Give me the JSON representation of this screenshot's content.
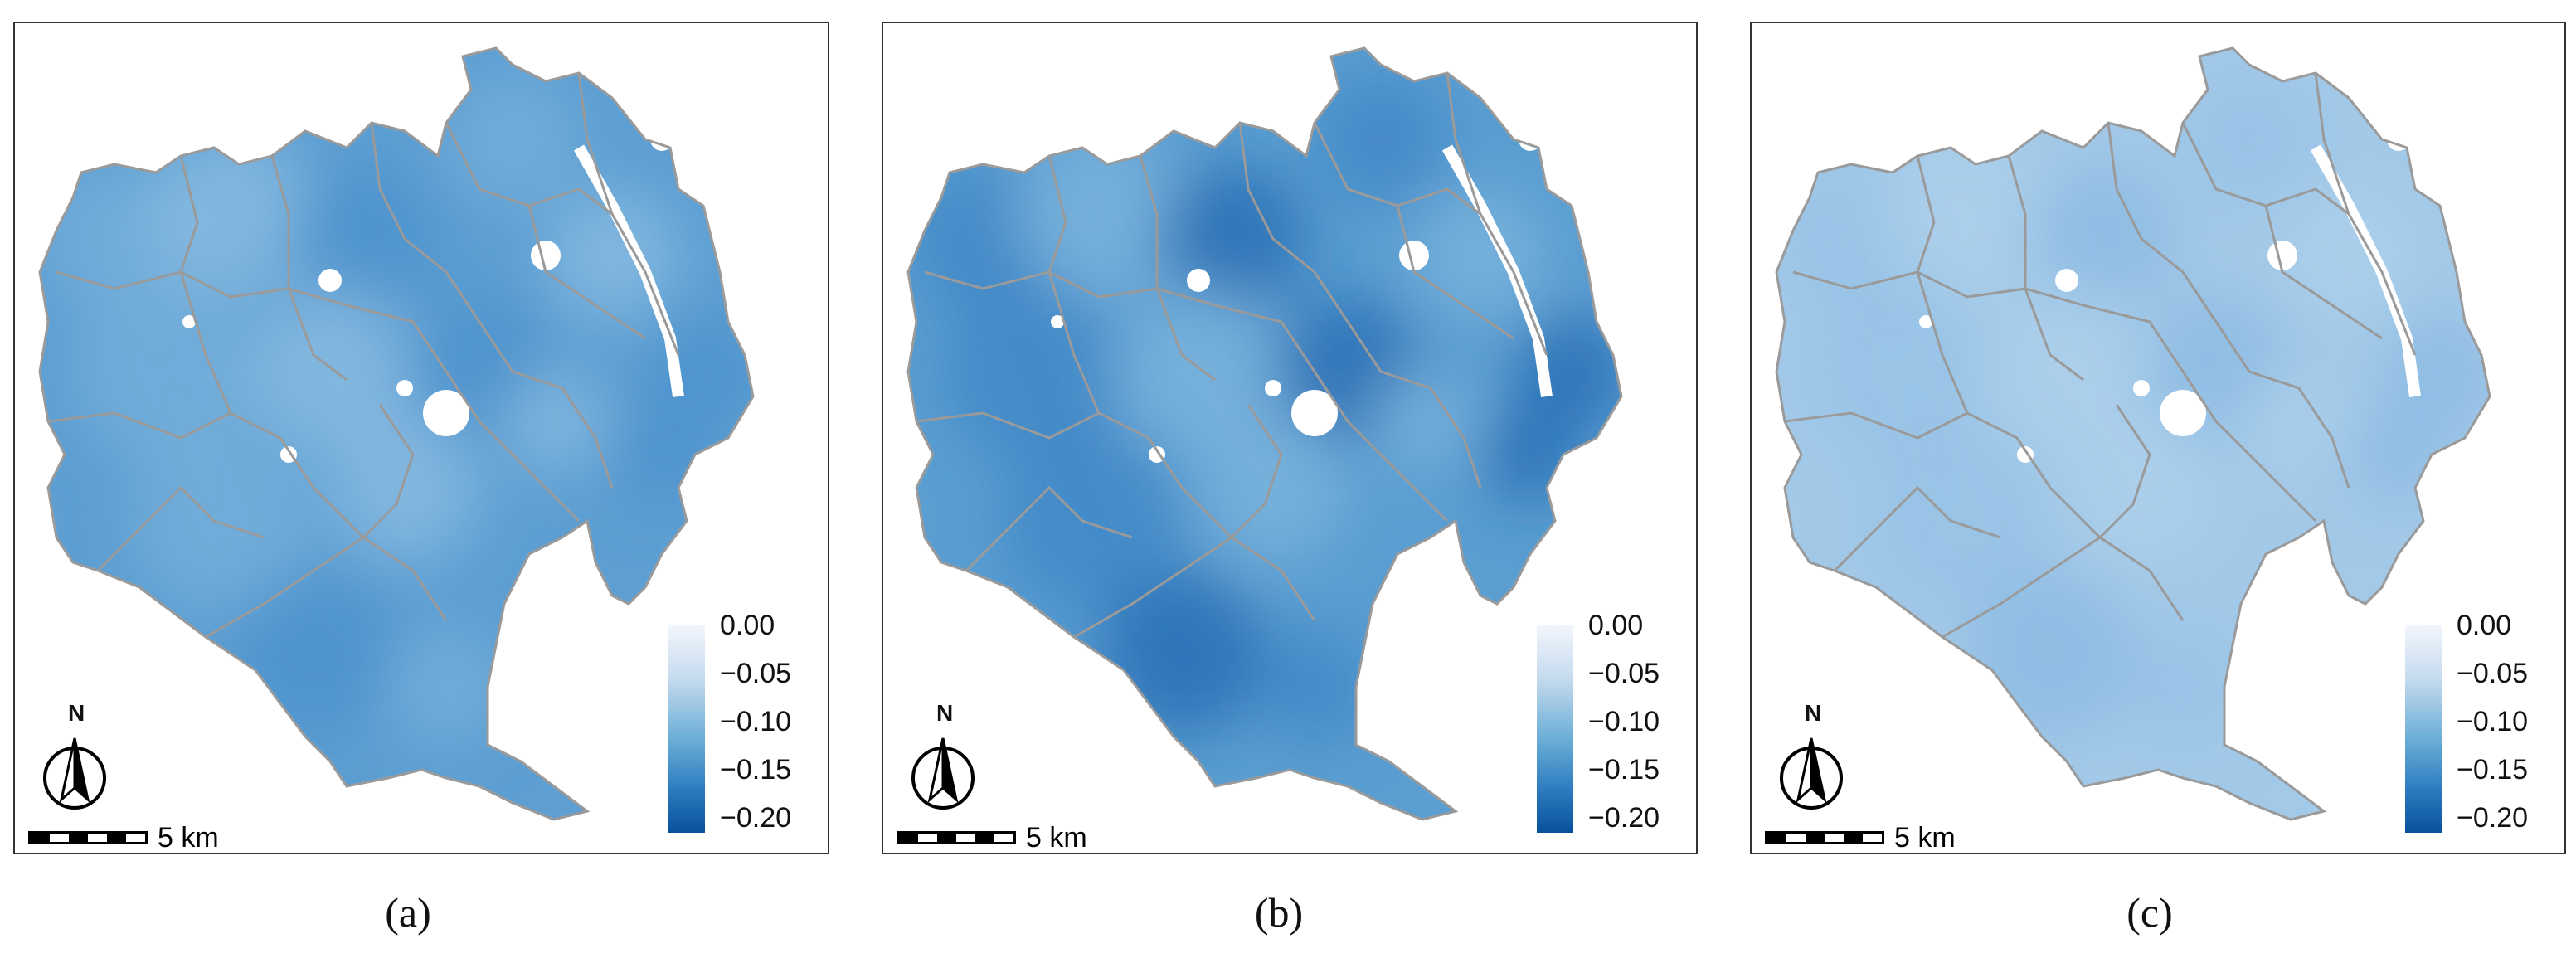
{
  "panels": [
    {
      "caption": "(a)",
      "fill_colors": [
        "#5d9fd3",
        "#77b0db",
        "#8dbde2",
        "#4a92cc"
      ],
      "legend": {
        "ticks": [
          "0.00",
          "−0.05",
          "−0.10",
          "−0.15",
          "−0.20"
        ]
      },
      "north_label": "N",
      "scale_label": "5 km"
    },
    {
      "caption": "(b)",
      "fill_colors": [
        "#5a9ed2",
        "#3d86c5",
        "#7fb5de",
        "#1f69b0"
      ],
      "legend": {
        "ticks": [
          "0.00",
          "−0.05",
          "−0.10",
          "−0.15",
          "−0.20"
        ]
      },
      "north_label": "N",
      "scale_label": "5 km"
    },
    {
      "caption": "(c)",
      "fill_colors": [
        "#a3c9e8",
        "#95c1e5",
        "#aed0eb",
        "#89b9e1"
      ],
      "legend": {
        "ticks": [
          "0.00",
          "−0.05",
          "−0.10",
          "−0.15",
          "−0.20"
        ]
      },
      "north_label": "N",
      "scale_label": "5 km"
    }
  ],
  "colors": {
    "boundary": "#9a9a9a",
    "frame": "#333333",
    "legend_top": "#f2f6fc",
    "legend_bottom": "#08519c"
  }
}
